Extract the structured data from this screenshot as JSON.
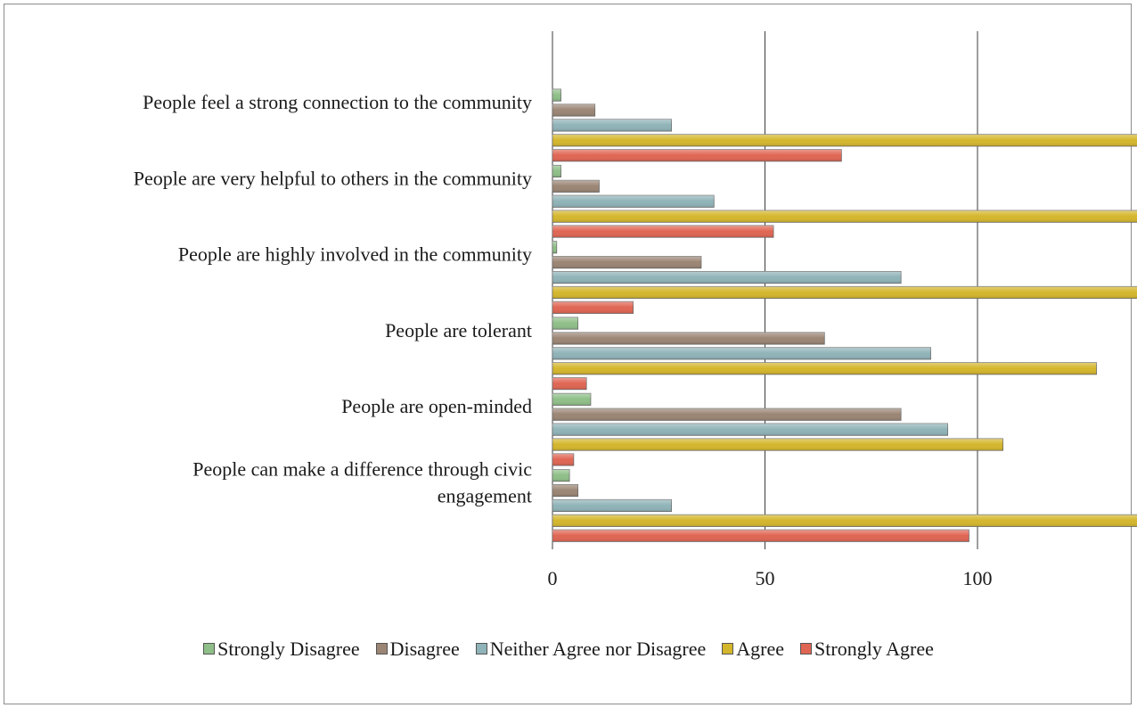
{
  "chart_data": {
    "type": "bar",
    "orientation": "horizontal",
    "categories": [
      "People feel a strong connection to the community",
      "People are very helpful to others in the community",
      "People are highly involved in the community",
      "People are tolerant",
      "People are open-minded",
      "People can make a difference through civic engagement"
    ],
    "series": [
      {
        "name": "Strongly Disagree",
        "color": "#8fbf88",
        "values": [
          2,
          2,
          1,
          6,
          9,
          4
        ]
      },
      {
        "name": "Disagree",
        "color": "#9b8574",
        "values": [
          10,
          11,
          35,
          64,
          82,
          6
        ]
      },
      {
        "name": "Neither Agree nor Disagree",
        "color": "#8fb3b8",
        "values": [
          28,
          38,
          82,
          89,
          93,
          28
        ]
      },
      {
        "name": "Agree",
        "color": "#d4b62c",
        "values": [
          189,
          192,
          158,
          128,
          106,
          160
        ]
      },
      {
        "name": "Strongly Agree",
        "color": "#e06553",
        "values": [
          68,
          52,
          19,
          8,
          5,
          98
        ]
      }
    ],
    "xlim": [
      0,
      250
    ],
    "xticks": [
      "0",
      "50",
      "100",
      "150",
      "200",
      "250"
    ],
    "grid": true,
    "legend_position": "bottom"
  }
}
